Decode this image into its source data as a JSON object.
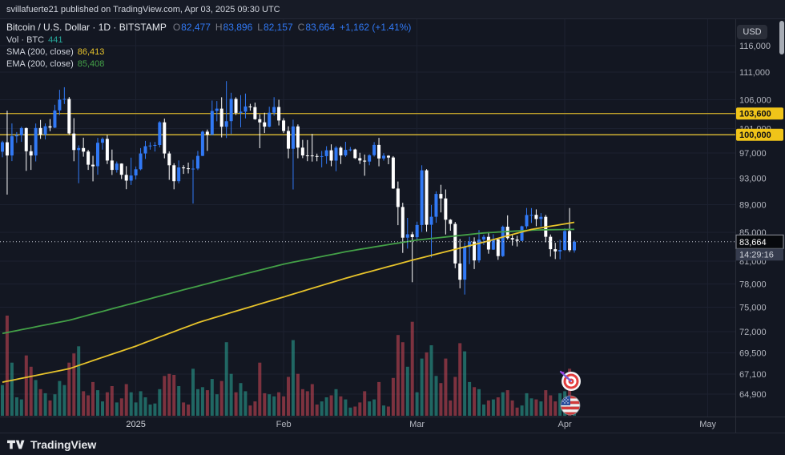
{
  "header": {
    "text": "svillafuerte21 published on TradingView.com, Apr 03, 2025 09:30 UTC"
  },
  "legend": {
    "title": "Bitcoin / U.S. Dollar · 1D · BITSTAMP",
    "ohlc": {
      "o_label": "O",
      "o": "82,477",
      "h_label": "H",
      "h": "83,896",
      "l_label": "L",
      "l": "82,157",
      "c_label": "C",
      "c": "83,664",
      "change": "+1,162 (+1.41%)"
    },
    "volume": {
      "label": "Vol · BTC",
      "value": "441"
    },
    "sma": {
      "label": "SMA (200, close)",
      "value": "86,413"
    },
    "ema": {
      "label": "EMA (200, close)",
      "value": "85,408"
    }
  },
  "axis": {
    "currency_button": "USD"
  },
  "footer": {
    "brand": "TradingView"
  },
  "chart_data": {
    "type": "candlestick",
    "symbol": "Bitcoin / U.S. Dollar",
    "exchange": "BITSTAMP",
    "interval": "1D",
    "scale": "log",
    "start_date": "2024-12-04",
    "end_date": "2025-04-03",
    "last": {
      "price": 83664,
      "label": "83,664",
      "countdown": "14:29:16"
    },
    "indicators": [
      {
        "name": "SMA",
        "length": 200,
        "source": "close",
        "value": 86413
      },
      {
        "name": "EMA",
        "length": 200,
        "source": "close",
        "value": 85408
      }
    ],
    "levels": [
      {
        "price": 103600,
        "label": "103,600",
        "line": "#bfa02a",
        "bg": "#f0c419"
      },
      {
        "price": 100000,
        "label": "100,000",
        "line": "#e2c035",
        "bg": "#f0c419"
      }
    ],
    "y_ticks": [
      {
        "price": 116000,
        "label": "116,000"
      },
      {
        "price": 111000,
        "label": "111,000"
      },
      {
        "price": 106000,
        "label": "106,000"
      },
      {
        "price": 101000,
        "label": "101,000"
      },
      {
        "price": 97000,
        "label": "97,000"
      },
      {
        "price": 93000,
        "label": "93,000"
      },
      {
        "price": 89000,
        "label": "89,000"
      },
      {
        "price": 85000,
        "label": "85,000"
      },
      {
        "price": 81000,
        "label": "81,000"
      },
      {
        "price": 78000,
        "label": "78,000"
      },
      {
        "price": 75000,
        "label": "75,000"
      },
      {
        "price": 72000,
        "label": "72,000"
      },
      {
        "price": 69500,
        "label": "69,500"
      },
      {
        "price": 67100,
        "label": "67,100"
      },
      {
        "price": 64900,
        "label": "64,900"
      }
    ],
    "x_ticks": [
      {
        "label": "2025",
        "i": 28,
        "major": true
      },
      {
        "label": "Feb",
        "i": 59
      },
      {
        "label": "Mar",
        "i": 87
      },
      {
        "label": "Apr",
        "i": 118
      },
      {
        "label": "May",
        "i": 148
      }
    ],
    "sma_points": [
      [
        0,
        66200
      ],
      [
        14,
        67700
      ],
      [
        28,
        70300
      ],
      [
        41,
        73100
      ],
      [
        59,
        76300
      ],
      [
        73,
        78900
      ],
      [
        87,
        81300
      ],
      [
        101,
        83600
      ],
      [
        111,
        85400
      ],
      [
        120,
        86413
      ]
    ],
    "ema_points": [
      [
        0,
        71800
      ],
      [
        14,
        73400
      ],
      [
        28,
        75600
      ],
      [
        41,
        77700
      ],
      [
        59,
        80600
      ],
      [
        73,
        82400
      ],
      [
        87,
        83900
      ],
      [
        101,
        84900
      ],
      [
        111,
        85300
      ],
      [
        120,
        85408
      ]
    ],
    "stickers": [
      {
        "type": "dart-target",
        "x": 713,
        "y": 452
      },
      {
        "type": "us-flag",
        "x": 712,
        "y": 482
      }
    ],
    "colors": {
      "up": "#3179f5",
      "down": "#ffffff",
      "vol_up": "rgba(42,157,143,0.6)",
      "vol_down": "rgba(214,72,87,0.55)",
      "sma": "#e7c32b",
      "ema": "#43a047",
      "grid": "#1c2130",
      "axis_text": "#b2b5be",
      "axis_line": "#2a2e39",
      "last_line": "#c5c9d3"
    },
    "candles": [
      [
        97200,
        99000,
        96300,
        98750,
        3000
      ],
      [
        98750,
        104088,
        90500,
        96594,
        9800
      ],
      [
        96594,
        101900,
        95700,
        99740,
        5200
      ],
      [
        99740,
        100440,
        98660,
        99920,
        1800
      ],
      [
        99920,
        101350,
        98810,
        101110,
        1600
      ],
      [
        101110,
        101200,
        94150,
        97280,
        5900
      ],
      [
        97280,
        98270,
        94300,
        96600,
        4800
      ],
      [
        96600,
        101880,
        95650,
        101120,
        3500
      ],
      [
        101120,
        102500,
        99300,
        100020,
        2600
      ],
      [
        100020,
        101890,
        99210,
        101420,
        2200
      ],
      [
        101420,
        102650,
        100600,
        101190,
        1500
      ],
      [
        101190,
        105120,
        101110,
        104130,
        2100
      ],
      [
        104130,
        107780,
        103340,
        106030,
        3400
      ],
      [
        106030,
        108230,
        105250,
        106140,
        3000
      ],
      [
        106140,
        106480,
        100000,
        100200,
        5200
      ],
      [
        100200,
        102800,
        95670,
        97480,
        6100
      ],
      [
        97480,
        98230,
        92230,
        97810,
        6800
      ],
      [
        97810,
        99500,
        96400,
        97230,
        2400
      ],
      [
        97230,
        97500,
        94300,
        95130,
        2000
      ],
      [
        95130,
        96540,
        92520,
        94880,
        3300
      ],
      [
        94880,
        99480,
        93550,
        98670,
        2500
      ],
      [
        98670,
        99550,
        97540,
        99300,
        1400
      ],
      [
        99300,
        99960,
        95230,
        95790,
        2300
      ],
      [
        95790,
        97550,
        93510,
        94300,
        2900
      ],
      [
        94300,
        95640,
        93870,
        95300,
        1300
      ],
      [
        95300,
        95340,
        92880,
        93530,
        1700
      ],
      [
        93530,
        94900,
        91320,
        92640,
        3100
      ],
      [
        92640,
        96250,
        91970,
        93430,
        2300
      ],
      [
        93430,
        94850,
        92800,
        94400,
        1300
      ],
      [
        94400,
        97790,
        94240,
        96920,
        2400
      ],
      [
        96920,
        98970,
        96050,
        98110,
        1800
      ],
      [
        98110,
        98760,
        97540,
        98210,
        1100
      ],
      [
        98210,
        98800,
        97230,
        98300,
        1200
      ],
      [
        98300,
        102280,
        97920,
        102090,
        2600
      ],
      [
        102090,
        102720,
        96150,
        96920,
        3900
      ],
      [
        96920,
        97250,
        92750,
        95040,
        4100
      ],
      [
        95040,
        95350,
        91300,
        92550,
        4000
      ],
      [
        92550,
        95800,
        92210,
        94700,
        2900
      ],
      [
        94700,
        95050,
        93680,
        94560,
        1300
      ],
      [
        94560,
        95450,
        93750,
        94480,
        1100
      ],
      [
        94480,
        95900,
        89160,
        94510,
        4600
      ],
      [
        94510,
        97340,
        94280,
        96530,
        2600
      ],
      [
        96530,
        100690,
        96500,
        100500,
        2800
      ],
      [
        100500,
        100870,
        97330,
        99990,
        2500
      ],
      [
        99990,
        105860,
        99950,
        104040,
        3600
      ],
      [
        104040,
        105780,
        102270,
        104440,
        2100
      ],
      [
        104440,
        106450,
        99550,
        101330,
        3400
      ],
      [
        101330,
        109350,
        99450,
        102280,
        7200
      ],
      [
        102280,
        107240,
        100130,
        106140,
        4100
      ],
      [
        106140,
        106450,
        103350,
        103700,
        2300
      ],
      [
        103700,
        106820,
        101230,
        103910,
        3200
      ],
      [
        103910,
        107100,
        102750,
        104820,
        2400
      ],
      [
        104820,
        105280,
        104090,
        104710,
        1000
      ],
      [
        104710,
        105500,
        102520,
        102620,
        1400
      ],
      [
        102620,
        103470,
        97780,
        102080,
        5200
      ],
      [
        102080,
        103740,
        100280,
        101340,
        2200
      ],
      [
        101340,
        104780,
        101240,
        103730,
        2100
      ],
      [
        103730,
        106460,
        103220,
        104720,
        1900
      ],
      [
        104720,
        106000,
        101560,
        102400,
        2300
      ],
      [
        102400,
        102790,
        100280,
        100620,
        1900
      ],
      [
        100620,
        101420,
        96150,
        97690,
        3800
      ],
      [
        97690,
        102540,
        91280,
        101400,
        7400
      ],
      [
        101400,
        101730,
        96150,
        97870,
        4100
      ],
      [
        97870,
        99150,
        96170,
        96610,
        2600
      ],
      [
        96610,
        99120,
        95680,
        96600,
        2400
      ],
      [
        96600,
        100140,
        95620,
        96510,
        3100
      ],
      [
        96510,
        96900,
        95670,
        96480,
        1100
      ],
      [
        96480,
        97330,
        94710,
        96500,
        1400
      ],
      [
        96500,
        98100,
        95250,
        97440,
        1800
      ],
      [
        97440,
        98410,
        94880,
        95780,
        2000
      ],
      [
        95780,
        98120,
        94090,
        97860,
        2600
      ],
      [
        97860,
        98080,
        95230,
        96610,
        1900
      ],
      [
        96610,
        98830,
        96380,
        97510,
        1600
      ],
      [
        97510,
        97970,
        97270,
        97570,
        800
      ],
      [
        97570,
        97700,
        96050,
        96170,
        900
      ],
      [
        96170,
        97040,
        95240,
        95780,
        1300
      ],
      [
        95780,
        96750,
        93390,
        95630,
        2400
      ],
      [
        95630,
        96780,
        95030,
        96640,
        1400
      ],
      [
        96640,
        98770,
        96430,
        98310,
        1600
      ],
      [
        98310,
        99470,
        94870,
        96120,
        3300
      ],
      [
        96120,
        96970,
        95770,
        96560,
        1000
      ],
      [
        96560,
        96640,
        95200,
        96270,
        900
      ],
      [
        96270,
        96500,
        91350,
        91420,
        3700
      ],
      [
        91420,
        92500,
        86000,
        88650,
        7900
      ],
      [
        88650,
        89280,
        82120,
        84230,
        7200
      ],
      [
        84230,
        87060,
        82700,
        84700,
        4800
      ],
      [
        84700,
        85050,
        78210,
        84300,
        9200
      ],
      [
        84300,
        86510,
        83800,
        86030,
        2300
      ],
      [
        86030,
        95030,
        85050,
        94240,
        5600
      ],
      [
        94240,
        94420,
        85080,
        86060,
        6200
      ],
      [
        86060,
        88950,
        81500,
        87220,
        6900
      ],
      [
        87220,
        91000,
        86350,
        90600,
        3900
      ],
      [
        90600,
        91990,
        87850,
        89930,
        3200
      ],
      [
        89930,
        91280,
        84680,
        86790,
        5600
      ],
      [
        86790,
        86880,
        85220,
        86190,
        1500
      ],
      [
        86190,
        86470,
        80050,
        80690,
        3800
      ],
      [
        80690,
        84050,
        77420,
        78530,
        7100
      ],
      [
        78530,
        83550,
        76610,
        82920,
        6300
      ],
      [
        82920,
        84350,
        80600,
        83680,
        3300
      ],
      [
        83680,
        84280,
        79940,
        81100,
        2800
      ],
      [
        81100,
        85310,
        80810,
        83970,
        2600
      ],
      [
        83970,
        84640,
        83210,
        84340,
        1100
      ],
      [
        84340,
        85060,
        82010,
        82580,
        1500
      ],
      [
        82580,
        84720,
        82530,
        84010,
        1600
      ],
      [
        84010,
        84020,
        81170,
        81690,
        1800
      ],
      [
        81690,
        85950,
        81560,
        85790,
        2300
      ],
      [
        85790,
        87430,
        83970,
        84170,
        2500
      ],
      [
        84170,
        84750,
        83130,
        83970,
        1500
      ],
      [
        83970,
        84500,
        83000,
        83790,
        800
      ],
      [
        83790,
        85940,
        83740,
        85840,
        1000
      ],
      [
        85840,
        88510,
        85500,
        87470,
        2200
      ],
      [
        87470,
        88480,
        86330,
        87500,
        1700
      ],
      [
        87500,
        88290,
        85860,
        86900,
        1600
      ],
      [
        86900,
        87740,
        85830,
        87210,
        1400
      ],
      [
        87210,
        87490,
        83580,
        84360,
        2500
      ],
      [
        84360,
        84680,
        81620,
        82630,
        2000
      ],
      [
        82630,
        83510,
        81280,
        82330,
        1400
      ],
      [
        82330,
        83930,
        81250,
        82520,
        2200
      ],
      [
        82520,
        85540,
        82410,
        85170,
        2400
      ],
      [
        85170,
        88500,
        82250,
        82490,
        4600
      ],
      [
        82477,
        83896,
        82157,
        83664,
        441
      ]
    ]
  }
}
